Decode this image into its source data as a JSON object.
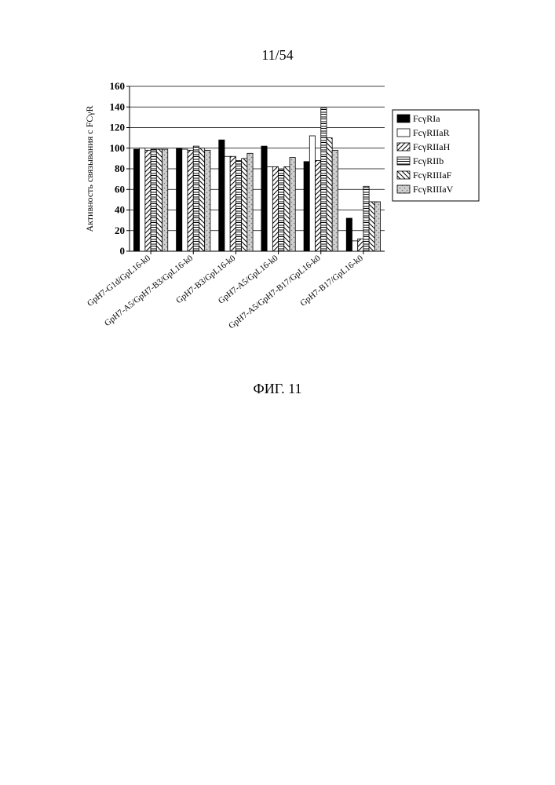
{
  "page": {
    "header": "11/54",
    "caption": "ФИГ. 11"
  },
  "chart": {
    "type": "grouped-bar",
    "y_axis_label": "Активность связывания с    FCγR",
    "y_axis_fontsize": 12,
    "ylim": [
      0,
      160
    ],
    "ytick_step": 20,
    "background_color": "#ffffff",
    "plot_border_color": "#000000",
    "grid_color": "#000000",
    "categories": [
      "GpH7-G1d/GpL16-k0",
      "GpH7-A5/GpH7-B3/GpL16-k0",
      "GpH7-B3/GpL16-k0",
      "GpH7-A5/GpL16-k0",
      "GpH7-A5/GpH7-B17/GpL16-k0",
      "GpH7-B17/GpL16-k0"
    ],
    "x_label_fontsize": 11,
    "x_label_rotation_deg": -38,
    "legend": {
      "position": "right",
      "fontsize": 12,
      "border_color": "#000000",
      "labels": [
        "FcγRIa",
        "FcγRIIaR",
        "FcγRIIaH",
        "FcγRIIb",
        "FcγRIIIaF",
        "FcγRIIIaV"
      ]
    },
    "series_styles": [
      {
        "name": "FcγRIa",
        "fill": "#000000",
        "pattern": "solid",
        "stroke": "#000000"
      },
      {
        "name": "FcγRIIaR",
        "fill": "#ffffff",
        "pattern": "none",
        "stroke": "#000000"
      },
      {
        "name": "FcγRIIaH",
        "fill": "#ffffff",
        "pattern": "diag-bl-tr",
        "stroke": "#000000"
      },
      {
        "name": "FcγRIIb",
        "fill": "#ffffff",
        "pattern": "horiz",
        "stroke": "#000000"
      },
      {
        "name": "FcγRIIIaF",
        "fill": "#ffffff",
        "pattern": "diag-tl-br",
        "stroke": "#000000"
      },
      {
        "name": "FcγRIIIaV",
        "fill": "#d0d0d0",
        "pattern": "dots",
        "stroke": "#000000"
      }
    ],
    "values": [
      [
        99,
        100,
        98,
        99,
        99,
        99
      ],
      [
        100,
        99,
        98,
        102,
        100,
        98
      ],
      [
        108,
        92,
        92,
        88,
        90,
        95
      ],
      [
        102,
        82,
        82,
        79,
        82,
        91
      ],
      [
        87,
        112,
        88,
        139,
        110,
        98
      ],
      [
        32,
        10,
        12,
        63,
        48,
        48
      ]
    ],
    "bar_group_gap": 0.2,
    "bar_width": 0.12
  }
}
